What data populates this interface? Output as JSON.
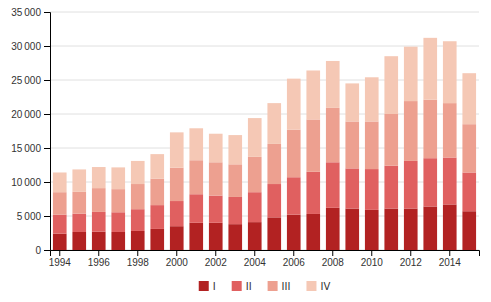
{
  "chart_data": {
    "type": "bar",
    "stacked": true,
    "grid": true,
    "legend": "bottom",
    "categories": [
      "1994",
      null,
      "1996",
      null,
      "1998",
      null,
      "2000",
      null,
      "2002",
      null,
      "2004",
      null,
      "2006",
      null,
      "2008",
      null,
      "2010",
      null,
      "2012",
      null,
      "2014",
      null
    ],
    "series": [
      {
        "name": "I",
        "color": "#b22222",
        "values": [
          2400,
          2650,
          2700,
          2650,
          2800,
          3100,
          3500,
          4000,
          4000,
          3800,
          4100,
          4800,
          5200,
          5300,
          6200,
          6100,
          5900,
          6100,
          6100,
          6400,
          6700,
          5700
        ]
      },
      {
        "name": "II",
        "color": "#e06060",
        "values": [
          2800,
          2700,
          2900,
          2900,
          3200,
          3500,
          3700,
          4200,
          4000,
          4000,
          4400,
          4900,
          5500,
          6200,
          6700,
          5900,
          6000,
          6300,
          7000,
          7100,
          6900,
          5700
        ]
      },
      {
        "name": "III",
        "color": "#eda090",
        "values": [
          3300,
          3200,
          3500,
          3400,
          3700,
          3900,
          4900,
          5000,
          4900,
          4800,
          5200,
          5900,
          7000,
          7700,
          8000,
          6900,
          7000,
          7600,
          8800,
          8600,
          8000,
          7100
        ]
      },
      {
        "name": "IV",
        "color": "#f5c8b5",
        "values": [
          2900,
          3300,
          3100,
          3200,
          3400,
          3600,
          5200,
          4700,
          4200,
          4300,
          5700,
          6000,
          7500,
          7200,
          6900,
          5600,
          6500,
          8500,
          8000,
          9100,
          9100,
          7500
        ]
      }
    ],
    "ylim": [
      0,
      35000
    ],
    "yticks": [
      0,
      {
        "value": 5000,
        "label": "5 000"
      },
      {
        "value": 10000,
        "label": "10 000"
      },
      {
        "value": 15000,
        "label": "15 000"
      },
      {
        "value": 20000,
        "label": "20 000"
      },
      {
        "value": 25000,
        "label": "25 000"
      },
      {
        "value": 30000,
        "label": "30 000"
      },
      {
        "value": 35000,
        "label": "35 000"
      }
    ]
  }
}
